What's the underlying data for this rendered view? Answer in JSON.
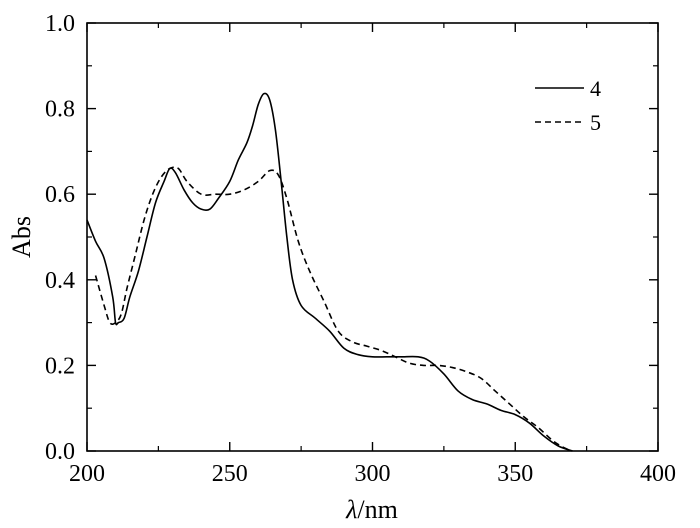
{
  "chart_data": {
    "type": "line",
    "xlabel_italic": "λ",
    "xlabel_rest": "/nm",
    "ylabel": "Abs",
    "xlim": [
      200,
      400
    ],
    "ylim": [
      0.0,
      1.0
    ],
    "x_ticks": [
      "200",
      "250",
      "300",
      "350",
      "400"
    ],
    "y_ticks": [
      "0.0",
      "0.2",
      "0.4",
      "0.6",
      "0.8",
      "1.0"
    ],
    "grid": false,
    "legend_position": "top-right",
    "series": [
      {
        "name": "4",
        "style": "solid",
        "color": "#000000",
        "points": [
          [
            200,
            0.54
          ],
          [
            203,
            0.49
          ],
          [
            206,
            0.45
          ],
          [
            209,
            0.36
          ],
          [
            210,
            0.3
          ],
          [
            211,
            0.3
          ],
          [
            213,
            0.31
          ],
          [
            215,
            0.36
          ],
          [
            218,
            0.42
          ],
          [
            221,
            0.5
          ],
          [
            224,
            0.58
          ],
          [
            227,
            0.63
          ],
          [
            229,
            0.66
          ],
          [
            231,
            0.65
          ],
          [
            234,
            0.61
          ],
          [
            237,
            0.58
          ],
          [
            240,
            0.565
          ],
          [
            243,
            0.565
          ],
          [
            246,
            0.59
          ],
          [
            250,
            0.63
          ],
          [
            253,
            0.68
          ],
          [
            256,
            0.72
          ],
          [
            258,
            0.76
          ],
          [
            260,
            0.81
          ],
          [
            262,
            0.835
          ],
          [
            264,
            0.82
          ],
          [
            266,
            0.75
          ],
          [
            268,
            0.63
          ],
          [
            270,
            0.5
          ],
          [
            272,
            0.4
          ],
          [
            275,
            0.34
          ],
          [
            280,
            0.31
          ],
          [
            285,
            0.28
          ],
          [
            290,
            0.24
          ],
          [
            295,
            0.225
          ],
          [
            300,
            0.22
          ],
          [
            305,
            0.22
          ],
          [
            310,
            0.22
          ],
          [
            316,
            0.22
          ],
          [
            320,
            0.21
          ],
          [
            325,
            0.18
          ],
          [
            330,
            0.14
          ],
          [
            335,
            0.12
          ],
          [
            340,
            0.11
          ],
          [
            345,
            0.095
          ],
          [
            350,
            0.085
          ],
          [
            355,
            0.065
          ],
          [
            360,
            0.035
          ],
          [
            365,
            0.012
          ],
          [
            370,
            0.0
          ]
        ]
      },
      {
        "name": "5",
        "style": "dashed",
        "color": "#000000",
        "points": [
          [
            203,
            0.41
          ],
          [
            206,
            0.34
          ],
          [
            208,
            0.3
          ],
          [
            210,
            0.3
          ],
          [
            212,
            0.32
          ],
          [
            214,
            0.38
          ],
          [
            217,
            0.46
          ],
          [
            220,
            0.54
          ],
          [
            223,
            0.6
          ],
          [
            226,
            0.64
          ],
          [
            229,
            0.66
          ],
          [
            232,
            0.66
          ],
          [
            235,
            0.63
          ],
          [
            240,
            0.6
          ],
          [
            245,
            0.6
          ],
          [
            250,
            0.6
          ],
          [
            255,
            0.61
          ],
          [
            260,
            0.63
          ],
          [
            264,
            0.655
          ],
          [
            267,
            0.645
          ],
          [
            270,
            0.59
          ],
          [
            274,
            0.49
          ],
          [
            278,
            0.42
          ],
          [
            283,
            0.35
          ],
          [
            288,
            0.28
          ],
          [
            293,
            0.255
          ],
          [
            298,
            0.245
          ],
          [
            303,
            0.235
          ],
          [
            308,
            0.22
          ],
          [
            313,
            0.205
          ],
          [
            318,
            0.2
          ],
          [
            323,
            0.2
          ],
          [
            328,
            0.195
          ],
          [
            333,
            0.185
          ],
          [
            338,
            0.17
          ],
          [
            343,
            0.14
          ],
          [
            348,
            0.11
          ],
          [
            353,
            0.08
          ],
          [
            358,
            0.055
          ],
          [
            363,
            0.025
          ],
          [
            367,
            0.008
          ],
          [
            370,
            0.0
          ]
        ]
      }
    ]
  }
}
